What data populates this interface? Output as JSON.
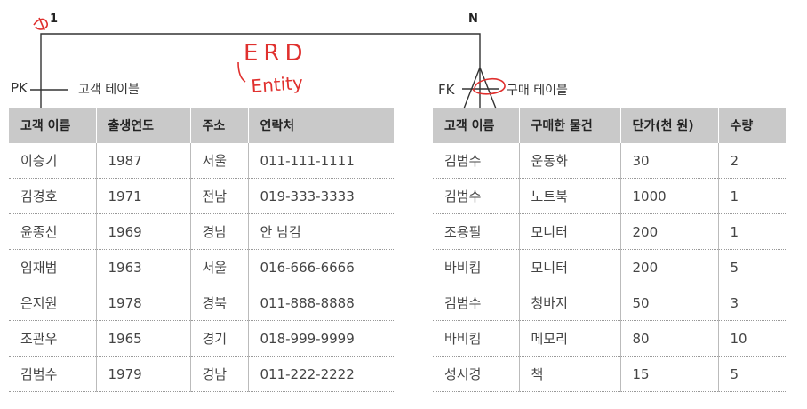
{
  "relationship": {
    "cardinality_one": "1",
    "cardinality_many": "N"
  },
  "left_table": {
    "key_label": "PK",
    "name": "고객 테이블",
    "columns": [
      "고객 이름",
      "출생연도",
      "주소",
      "연락처"
    ],
    "rows": [
      [
        "이승기",
        "1987",
        "서울",
        "011-111-1111"
      ],
      [
        "김경호",
        "1971",
        "전남",
        "019-333-3333"
      ],
      [
        "윤종신",
        "1969",
        "경남",
        "안 남김"
      ],
      [
        "임재범",
        "1963",
        "서울",
        "016-666-6666"
      ],
      [
        "은지원",
        "1978",
        "경북",
        "011-888-8888"
      ],
      [
        "조관우",
        "1965",
        "경기",
        "018-999-9999"
      ],
      [
        "김범수",
        "1979",
        "경남",
        "011-222-2222"
      ]
    ]
  },
  "right_table": {
    "key_label": "FK",
    "name": "구매 테이블",
    "columns": [
      "고객 이름",
      "구매한 물건",
      "단가(천 원)",
      "수량"
    ],
    "rows": [
      [
        "김범수",
        "운동화",
        "30",
        "2"
      ],
      [
        "김범수",
        "노트북",
        "1000",
        "1"
      ],
      [
        "조용필",
        "모니터",
        "200",
        "1"
      ],
      [
        "바비킴",
        "모니터",
        "200",
        "5"
      ],
      [
        "김범수",
        "청바지",
        "50",
        "3"
      ],
      [
        "바비킴",
        "메모리",
        "80",
        "10"
      ],
      [
        "성시경",
        "책",
        "15",
        "5"
      ]
    ]
  },
  "annotations": {
    "line1": "ERD",
    "line2": "Entity"
  },
  "colors": {
    "annotation": "#e0302e",
    "header_bg": "#c9c9c9",
    "line": "#333333"
  }
}
